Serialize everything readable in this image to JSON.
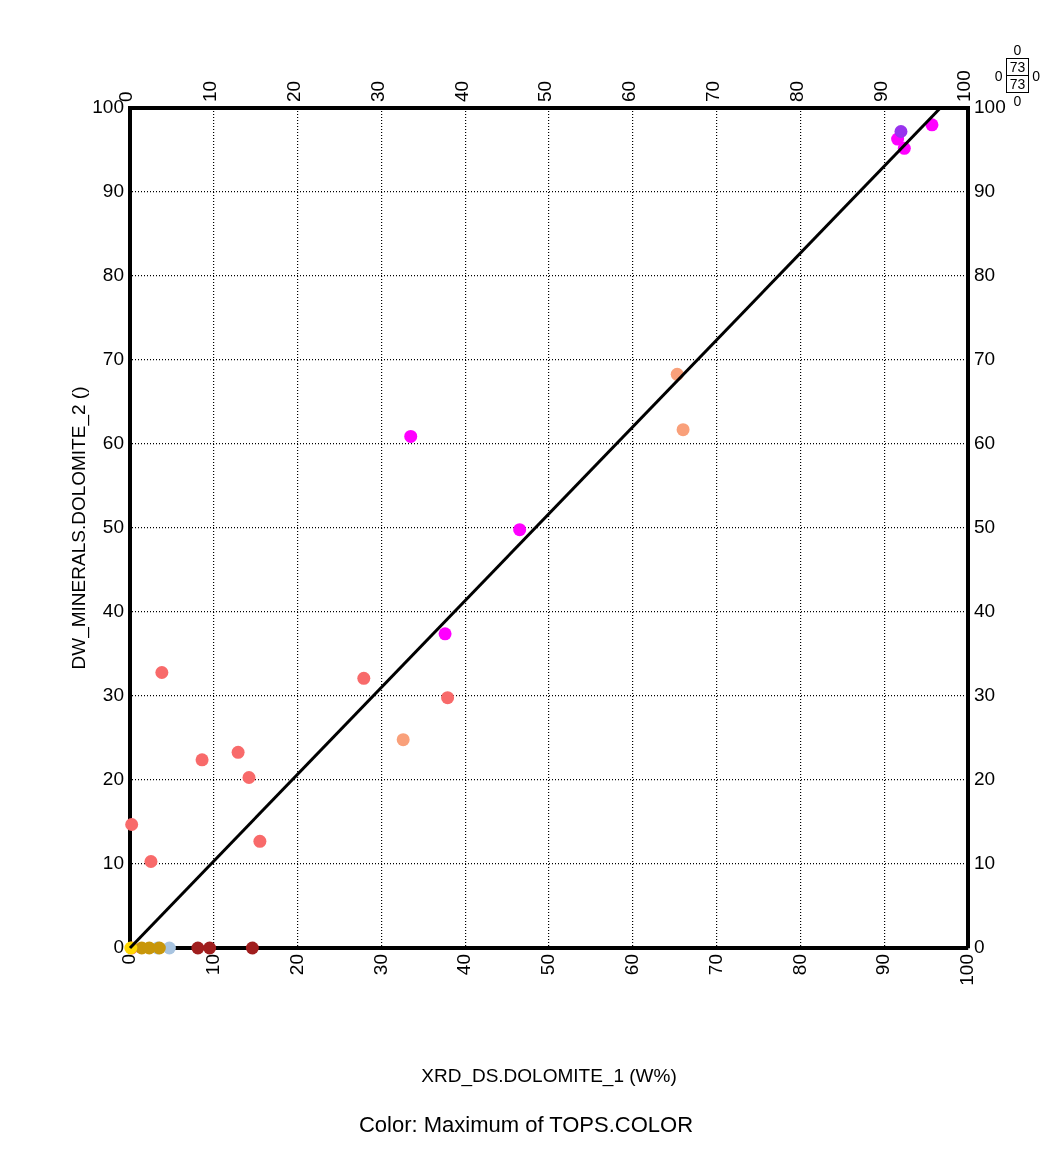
{
  "chart_data": {
    "type": "scatter",
    "xlabel": "XRD_DS.DOLOMITE_1 (W%)",
    "ylabel": "DW_MINERALS.DOLOMITE_2 ()",
    "annotations": [
      "Color: Maximum of TOPS.COLOR",
      "0",
      "0",
      "73",
      "73",
      "0",
      "0"
    ],
    "xlim": [
      0,
      100
    ],
    "ylim": [
      0,
      100
    ],
    "xticks": [
      0,
      10,
      20,
      30,
      40,
      50,
      60,
      70,
      80,
      90,
      100
    ],
    "yticks": [
      0,
      10,
      20,
      30,
      40,
      50,
      60,
      70,
      80,
      90,
      100
    ],
    "x2lim": [
      0,
      100
    ],
    "x2ticks": [
      0,
      10,
      20,
      30,
      40,
      50,
      60,
      70,
      80,
      90,
      100
    ],
    "y2lim": [
      0,
      100
    ],
    "y2ticks": [
      0,
      10,
      20,
      30,
      40,
      50,
      60,
      70,
      80,
      90,
      100
    ],
    "grid": true,
    "marker": "circle",
    "line_style": "dotted",
    "series": [
      {
        "color": "#f86a6a",
        "x": [
          0.2,
          2.5,
          3.8,
          8.6,
          12.9,
          14.2,
          15.5,
          27.9,
          37.9,
          0.2
        ],
        "values": [
          14.7,
          10.3,
          32.8,
          22.4,
          23.3,
          20.3,
          12.7,
          32.1,
          29.8,
          0
        ]
      },
      {
        "color": "#f9a07a",
        "x": [
          32.6,
          65.3,
          66.0
        ],
        "values": [
          24.8,
          68.3,
          61.7
        ]
      },
      {
        "color": "#ff00ff",
        "x": [
          33.5,
          46.5,
          37.6,
          91.6,
          92.4,
          95.7
        ],
        "values": [
          60.9,
          49.8,
          37.4,
          96.3,
          95.2,
          98.0
        ]
      },
      {
        "color": "#9933ee",
        "x": [
          92.0
        ],
        "values": [
          97.2
        ]
      },
      {
        "color": "#a01e1e",
        "x": [
          8.1,
          9.5,
          14.6
        ],
        "values": [
          0,
          0,
          0
        ]
      },
      {
        "color": "#a8c4e0",
        "x": [
          3.3,
          4.7
        ],
        "values": [
          0,
          0
        ]
      },
      {
        "color": "#c8960a",
        "x": [
          1.4,
          2.3,
          3.5
        ],
        "values": [
          0,
          0,
          0
        ]
      },
      {
        "color": "#ffd700",
        "x": [
          0.1
        ],
        "values": [
          0
        ]
      },
      {
        "type": "line",
        "color": "#000000",
        "marker": "none",
        "line_style": "solid",
        "x": [
          0,
          96.7
        ],
        "values": [
          0,
          100
        ]
      }
    ]
  }
}
